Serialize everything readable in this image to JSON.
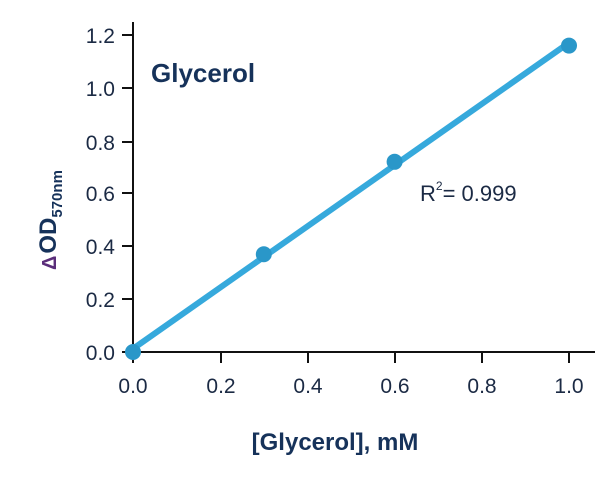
{
  "chart_data": {
    "type": "scatter",
    "title": "Glycerol",
    "xlabel": "[Glycerol], mM",
    "ylabel": "ΔOD570nm",
    "ylabel_parts": {
      "delta": "Δ",
      "main": "OD",
      "subscript": "570nm"
    },
    "x_ticks": [
      "0.0",
      "0.2",
      "0.4",
      "0.6",
      "0.8",
      "1.0"
    ],
    "y_ticks": [
      "0.0",
      "0.2",
      "0.4",
      "0.6",
      "0.8",
      "1.0",
      "1.2"
    ],
    "xlim": [
      0,
      1.0
    ],
    "ylim": [
      0,
      1.2
    ],
    "grid": false,
    "series": [
      {
        "name": "Glycerol",
        "x": [
          0.0,
          0.3,
          0.6,
          1.0
        ],
        "y": [
          0.0,
          0.37,
          0.72,
          1.16
        ],
        "color": "#2a97c9",
        "line_color": "#36a9dc",
        "fit": "linear"
      }
    ],
    "annotations": [
      {
        "text": "R2= 0.999",
        "label_main": "R",
        "label_sup": "2",
        "label_rest": "= 0.999"
      }
    ]
  }
}
